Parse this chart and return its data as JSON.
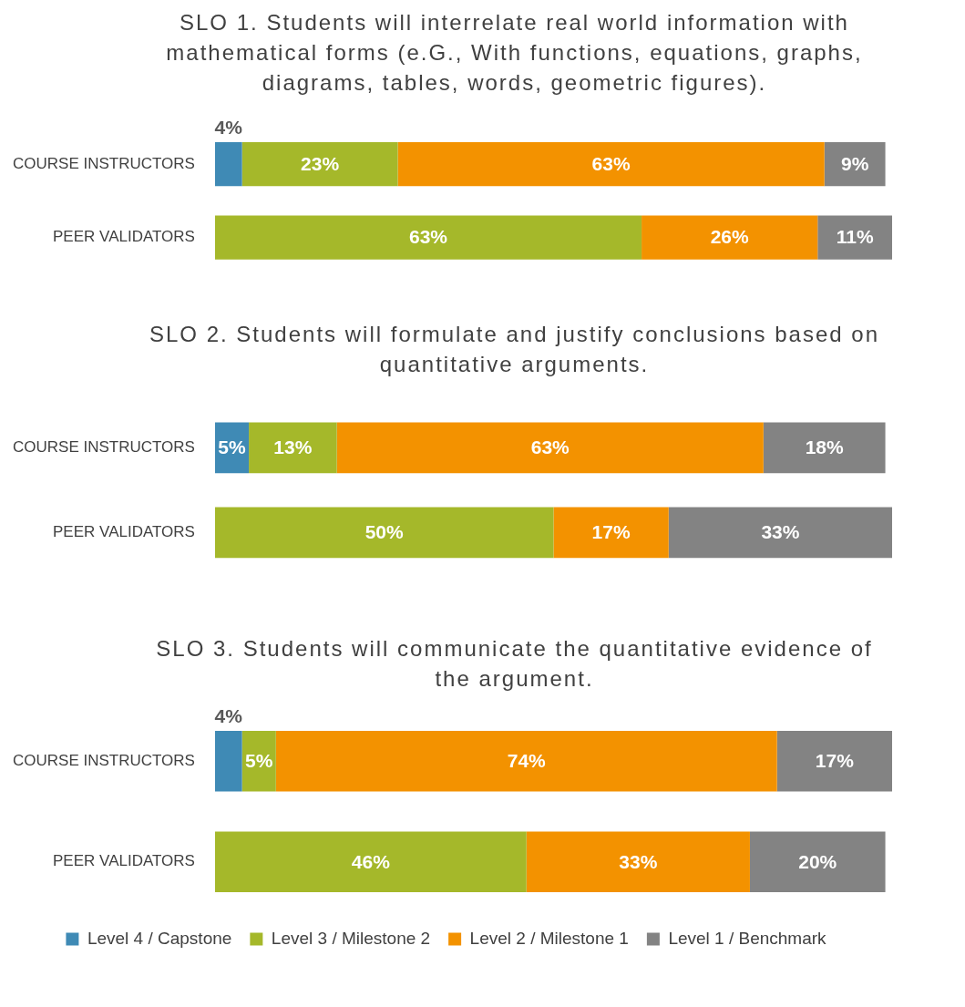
{
  "chart_data": [
    {
      "type": "bar",
      "orientation": "horizontal",
      "stacked": true,
      "title": "SLO 1. Students will interrelate real world information with mathematical forms (e.G., With functions, equations, graphs, diagrams, tables, words, geometric figures).",
      "categories": [
        "COURSE INSTRUCTORS",
        "PEER VALIDATORS"
      ],
      "legend": false,
      "series": [
        {
          "color": "#3f8ab5",
          "values": [
            4,
            null
          ],
          "value_labels": [
            "4%",
            null
          ]
        },
        {
          "color": "#a5b82a",
          "values": [
            23,
            63
          ],
          "value_labels": [
            "23%",
            "63%"
          ]
        },
        {
          "color": "#f39200",
          "values": [
            63,
            26
          ],
          "value_labels": [
            "63%",
            "26%"
          ]
        },
        {
          "color": "#838383",
          "values": [
            9,
            11
          ],
          "value_labels": [
            "9%",
            "11%"
          ]
        }
      ]
    },
    {
      "type": "bar",
      "orientation": "horizontal",
      "stacked": true,
      "title": "SLO 2. Students will formulate and justify conclusions based on quantitative arguments.",
      "categories": [
        "COURSE INSTRUCTORS",
        "PEER VALIDATORS"
      ],
      "legend": false,
      "series": [
        {
          "color": "#3f8ab5",
          "values": [
            5,
            null
          ],
          "value_labels": [
            "5%",
            null
          ]
        },
        {
          "color": "#a5b82a",
          "values": [
            13,
            50
          ],
          "value_labels": [
            "13%",
            "50%"
          ]
        },
        {
          "color": "#f39200",
          "values": [
            63,
            17
          ],
          "value_labels": [
            "63%",
            "17%"
          ]
        },
        {
          "color": "#838383",
          "values": [
            18,
            33
          ],
          "value_labels": [
            "18%",
            "33%"
          ]
        }
      ]
    },
    {
      "type": "bar",
      "orientation": "horizontal",
      "stacked": true,
      "title": "SLO 3. Students will communicate the quantitative evidence of the argument.",
      "categories": [
        "COURSE INSTRUCTORS",
        "PEER VALIDATORS"
      ],
      "legend": "bottom",
      "series": [
        {
          "name": "Level 4 / Capstone",
          "color": "#3f8ab5",
          "values": [
            4,
            null
          ],
          "value_labels": [
            "4%",
            null
          ]
        },
        {
          "name": "Level 3 / Milestone 2",
          "color": "#a5b82a",
          "values": [
            5,
            46
          ],
          "value_labels": [
            "5%",
            "46%"
          ]
        },
        {
          "name": "Level 2 / Milestone 1",
          "color": "#f39200",
          "values": [
            74,
            33
          ],
          "value_labels": [
            "74%",
            "33%"
          ]
        },
        {
          "name": "Level 1 / Benchmark",
          "color": "#838383",
          "values": [
            17,
            20
          ],
          "value_labels": [
            "17%",
            "20%"
          ]
        }
      ]
    }
  ]
}
